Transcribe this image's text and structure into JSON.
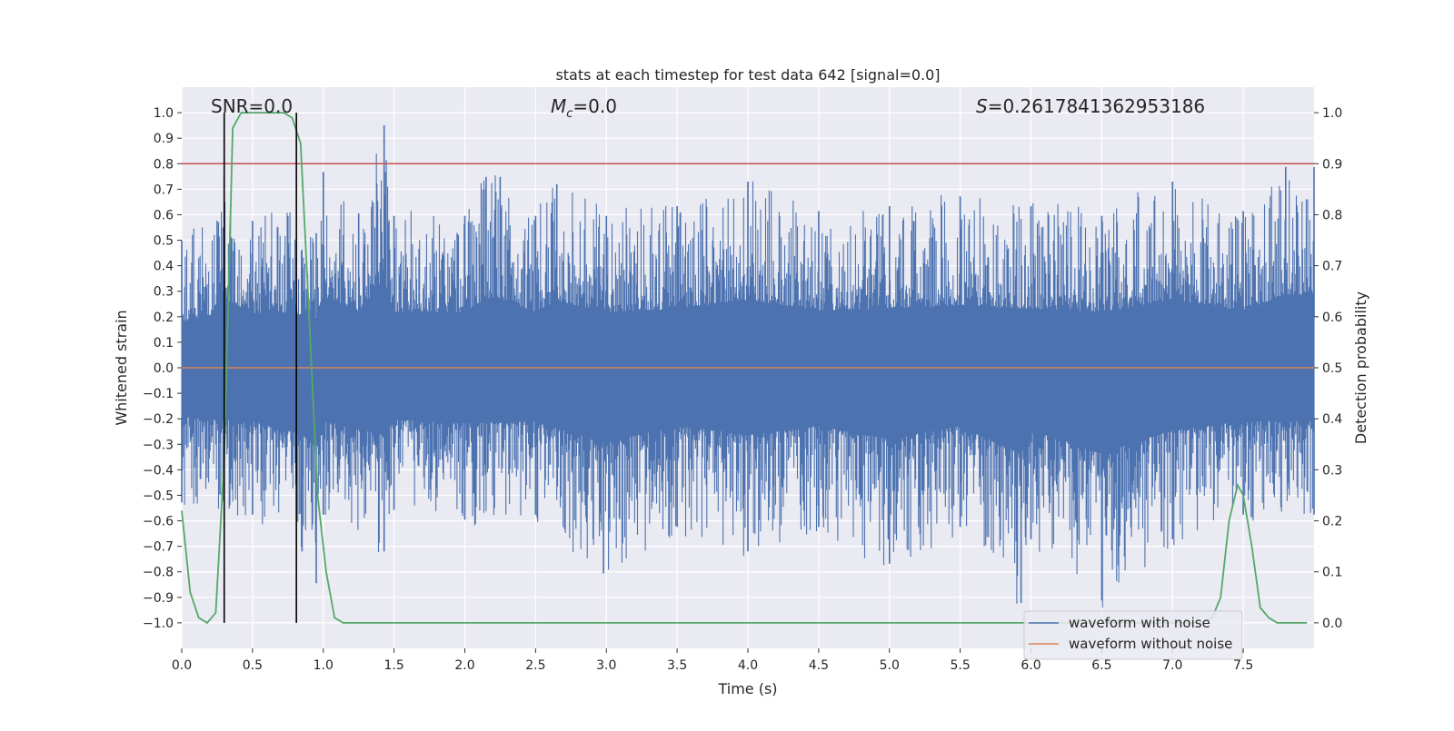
{
  "chart_data": {
    "type": "line",
    "title": "stats at each timestep for test data 642 [signal=0.0]",
    "xlabel": "Time (s)",
    "ylabel_left": "Whitened strain",
    "ylabel_right": "Detection probability",
    "xlim": [
      0.0,
      8.0
    ],
    "ylim_left": [
      -1.1,
      1.1
    ],
    "ylim_right": [
      -0.05,
      1.05
    ],
    "x_ticks": [
      "0.0",
      "0.5",
      "1.0",
      "1.5",
      "2.0",
      "2.5",
      "3.0",
      "3.5",
      "4.0",
      "4.5",
      "5.0",
      "5.5",
      "6.0",
      "6.5",
      "7.0",
      "7.5"
    ],
    "y_ticks_left": [
      "1.0",
      "0.9",
      "0.8",
      "0.7",
      "0.6",
      "0.5",
      "0.4",
      "0.3",
      "0.2",
      "0.1",
      "0.0",
      "−0.1",
      "−0.2",
      "−0.3",
      "−0.4",
      "−0.5",
      "−0.6",
      "−0.7",
      "−0.8",
      "−0.9",
      "−1.0"
    ],
    "y_ticks_right": [
      "1.0",
      "0.9",
      "0.8",
      "0.7",
      "0.6",
      "0.5",
      "0.4",
      "0.3",
      "0.2",
      "0.1",
      "0.0"
    ],
    "grid": true,
    "legend_position": "lower right",
    "annotations": {
      "snr": "SNR=0.0",
      "mc_prefix": "M",
      "mc_sub": "c",
      "mc_value": "=0.0",
      "s_prefix": "S",
      "s_value": "=0.2617841362953186"
    },
    "series": [
      {
        "name": "waveform with noise",
        "color": "#4c72b0",
        "envelope_upper": {
          "x": [
            0.0,
            0.25,
            0.3,
            0.5,
            0.75,
            0.95,
            1.0,
            1.25,
            1.43,
            1.5,
            2.0,
            2.15,
            2.25,
            2.5,
            2.65,
            3.0,
            3.5,
            4.0,
            4.5,
            5.0,
            5.5,
            6.0,
            6.5,
            7.0,
            7.5,
            7.8,
            8.0
          ],
          "y": [
            0.52,
            0.6,
            0.78,
            0.6,
            0.62,
            0.55,
            0.8,
            0.63,
            0.99,
            0.62,
            0.62,
            0.78,
            0.78,
            0.62,
            0.75,
            0.62,
            0.66,
            0.76,
            0.64,
            0.66,
            0.7,
            0.66,
            0.62,
            0.76,
            0.64,
            0.82,
            0.82
          ]
        },
        "envelope_lower": {
          "x": [
            0.0,
            0.5,
            0.85,
            0.95,
            1.0,
            1.43,
            1.5,
            2.0,
            2.5,
            2.98,
            3.5,
            4.0,
            4.5,
            5.0,
            5.5,
            5.93,
            6.0,
            6.5,
            7.0,
            7.5,
            8.0
          ],
          "y": [
            -0.55,
            -0.6,
            -0.75,
            -0.88,
            -0.6,
            -0.75,
            -0.58,
            -0.62,
            -0.6,
            -0.84,
            -0.65,
            -0.75,
            -0.65,
            -0.8,
            -0.65,
            -0.96,
            -0.7,
            -0.95,
            -0.7,
            -0.6,
            -0.6
          ]
        }
      },
      {
        "name": "waveform without noise",
        "color": "#dd8452",
        "x": [
          0.0,
          8.0
        ],
        "y": [
          0.0,
          0.0
        ]
      },
      {
        "color": "#55a868",
        "axis": "right",
        "x": [
          0.0,
          0.06,
          0.12,
          0.18,
          0.24,
          0.3,
          0.36,
          0.42,
          0.48,
          0.54,
          0.6,
          0.66,
          0.72,
          0.78,
          0.84,
          0.9,
          0.96,
          1.02,
          1.08,
          1.14,
          1.2,
          1.5,
          2.0,
          3.0,
          4.0,
          5.0,
          6.0,
          6.5,
          7.0,
          7.2,
          7.28,
          7.34,
          7.4,
          7.46,
          7.5,
          7.56,
          7.62,
          7.68,
          7.74,
          7.8,
          7.86,
          7.95
        ],
        "y": [
          0.22,
          0.06,
          0.01,
          0.0,
          0.02,
          0.32,
          0.97,
          1.0,
          1.0,
          1.0,
          1.0,
          1.0,
          1.0,
          0.99,
          0.94,
          0.6,
          0.25,
          0.1,
          0.01,
          0.0,
          0.0,
          0.0,
          0.0,
          0.0,
          0.0,
          0.0,
          0.0,
          0.0,
          0.0,
          0.0,
          0.01,
          0.05,
          0.2,
          0.27,
          0.25,
          0.15,
          0.03,
          0.01,
          0.0,
          0.0,
          0.0,
          0.0
        ]
      }
    ],
    "threshold_line": {
      "y_right": 0.9,
      "color": "#c44e52"
    },
    "vertical_markers": {
      "x": [
        0.3,
        0.81
      ],
      "color": "#000000"
    }
  }
}
